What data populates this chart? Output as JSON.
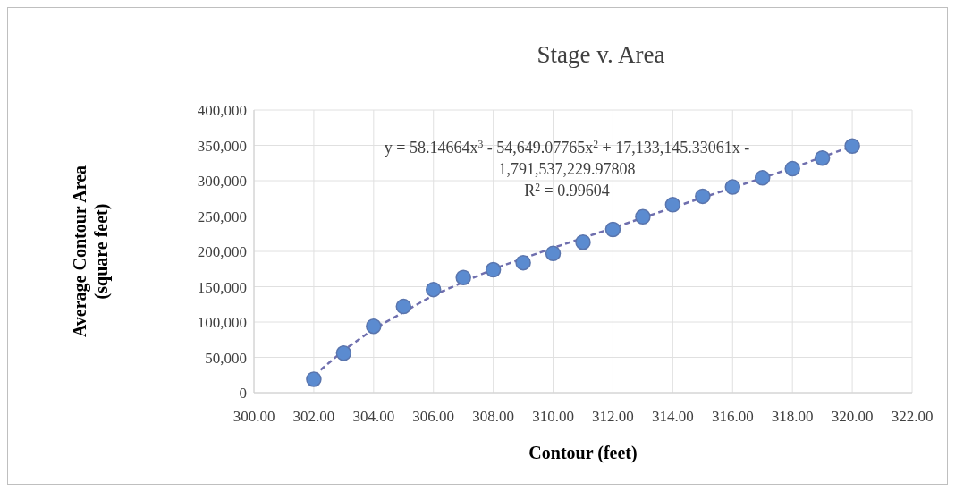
{
  "chart_data": {
    "type": "scatter",
    "title": "Stage v. Area",
    "xlabel": "Contour (feet)",
    "ylabel": "Average Contour Area\n(square feet)",
    "annotations": [
      "y = 58.14664x$^{3}$ - 54,649.07765x$^{2}$ + 17,133,145.33061x -",
      "1,791,537,229.97808",
      "R$^{2}$ = 0.99604"
    ],
    "series": [
      {
        "color": "#5b8bd0",
        "marker": "circle",
        "x": [
          302,
          303,
          304,
          305,
          306,
          307,
          308,
          309,
          310,
          311,
          312,
          313,
          314,
          315,
          316,
          317,
          318,
          319,
          320
        ],
        "values": [
          19000,
          56000,
          94000,
          122000,
          146000,
          163000,
          174000,
          184000,
          197000,
          213000,
          231000,
          249000,
          266000,
          278000,
          291000,
          304000,
          317000,
          332000,
          349000
        ]
      },
      {
        "type": "line",
        "color": "#6f6fae",
        "line_style": "dashed",
        "marker": "none",
        "x": [
          302,
          303,
          304,
          306,
          308,
          310,
          312,
          314,
          316,
          318,
          320
        ],
        "values": [
          24000,
          60000,
          90000,
          138000,
          175000,
          205000,
          233000,
          262000,
          290000,
          318000,
          349000
        ]
      }
    ],
    "xlim": [
      300,
      322
    ],
    "xticks": [
      {
        "value": 300,
        "label": "300.00"
      },
      {
        "value": 302,
        "label": "302.00"
      },
      {
        "value": 304,
        "label": "304.00"
      },
      {
        "value": 306,
        "label": "306.00"
      },
      {
        "value": 308,
        "label": "308.00"
      },
      {
        "value": 310,
        "label": "310.00"
      },
      {
        "value": 312,
        "label": "312.00"
      },
      {
        "value": 314,
        "label": "314.00"
      },
      {
        "value": 316,
        "label": "316.00"
      },
      {
        "value": 318,
        "label": "318.00"
      },
      {
        "value": 320,
        "label": "320.00"
      },
      {
        "value": 322,
        "label": "322.00"
      }
    ],
    "ylim": [
      0,
      400000
    ],
    "yticks": [
      0,
      {
        "value": 50000,
        "label": "50,000"
      },
      {
        "value": 100000,
        "label": "100,000"
      },
      {
        "value": 150000,
        "label": "150,000"
      },
      {
        "value": 200000,
        "label": "200,000"
      },
      {
        "value": 250000,
        "label": "250,000"
      },
      {
        "value": 300000,
        "label": "300,000"
      },
      {
        "value": 350000,
        "label": "350,000"
      },
      {
        "value": 400000,
        "label": "400,000"
      }
    ],
    "grid": true
  }
}
